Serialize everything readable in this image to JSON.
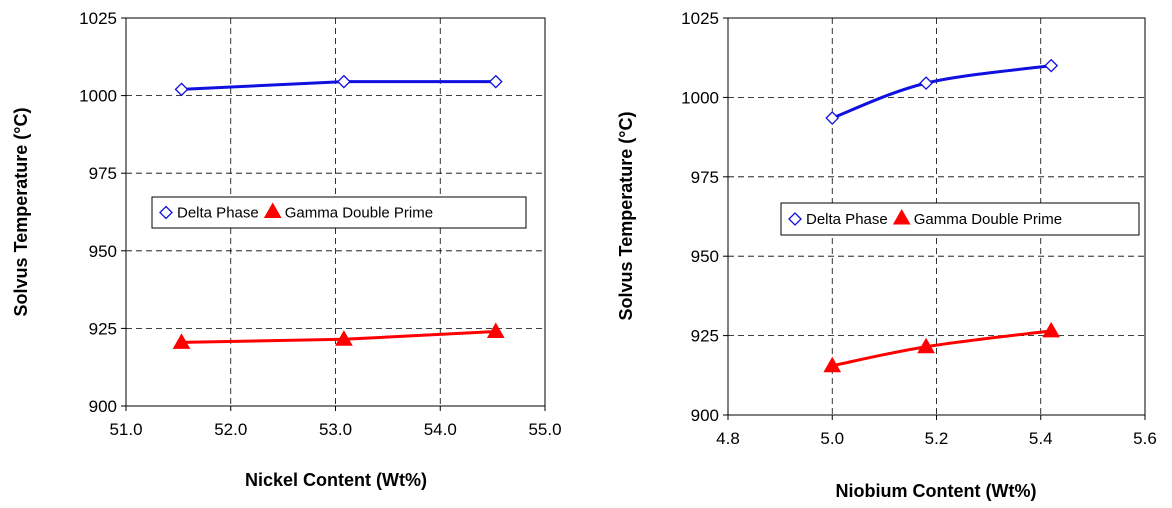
{
  "chart_data": [
    {
      "type": "line",
      "xlabel": "Nickel Content (Wt%)",
      "ylabel": "Solvus Temperature (°C)",
      "xlim": [
        51.0,
        55.0
      ],
      "ylim": [
        900,
        1025
      ],
      "xticks": [
        "51.0",
        "52.0",
        "53.0",
        "54.0",
        "55.0"
      ],
      "yticks": [
        "900",
        "925",
        "950",
        "975",
        "1000",
        "1025"
      ],
      "grid": "dashed",
      "legend_position": "center",
      "series": [
        {
          "name": "Delta Phase",
          "marker": "diamond-open",
          "color": "#1010e0",
          "x": [
            51.53,
            53.08,
            54.53
          ],
          "y": [
            1002,
            1004.5,
            1004.5
          ]
        },
        {
          "name": "Gamma Double Prime",
          "marker": "triangle-filled",
          "color": "#ff0000",
          "x": [
            51.53,
            53.08,
            54.53
          ],
          "y": [
            920.5,
            921.5,
            924
          ]
        }
      ]
    },
    {
      "type": "line",
      "xlabel": "Niobium Content (Wt%)",
      "ylabel": "Solvus Temperature (°C)",
      "xlim": [
        4.8,
        5.6
      ],
      "ylim": [
        900,
        1025
      ],
      "xticks": [
        "4.8",
        "5.0",
        "5.2",
        "5.4",
        "5.6"
      ],
      "yticks": [
        "900",
        "925",
        "950",
        "975",
        "1000",
        "1025"
      ],
      "grid": "dashed",
      "legend_position": "center",
      "series": [
        {
          "name": "Delta Phase",
          "marker": "diamond-open",
          "color": "#1010e0",
          "x": [
            5.0,
            5.18,
            5.42
          ],
          "y": [
            993.5,
            1004.5,
            1010
          ]
        },
        {
          "name": "Gamma Double Prime",
          "marker": "triangle-filled",
          "color": "#ff0000",
          "x": [
            5.0,
            5.18,
            5.42
          ],
          "y": [
            915.5,
            921.5,
            926.5
          ]
        }
      ]
    }
  ]
}
